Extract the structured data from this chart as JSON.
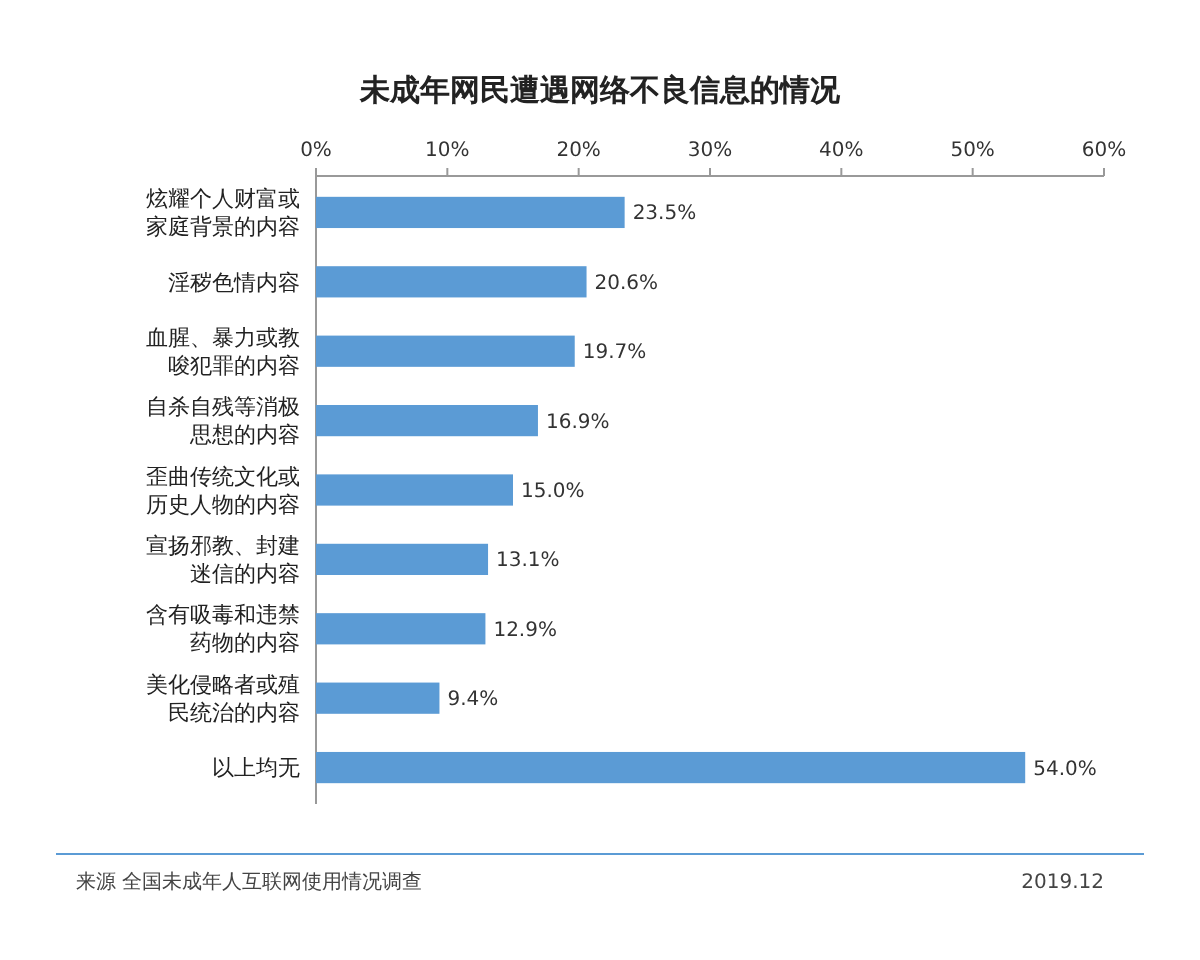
{
  "chart_data": {
    "type": "bar",
    "orientation": "horizontal",
    "title": "未成年网民遭遇网络不良信息的情况",
    "categories": [
      "炫耀个人财富或家庭背景的内容",
      "淫秽色情内容",
      "血腥、暴力或教唆犯罪的内容",
      "自杀自残等消极思想的内容",
      "歪曲传统文化或历史人物的内容",
      "宣扬邪教、封建迷信的内容",
      "含有吸毒和违禁药物的内容",
      "美化侵略者或殖民统治的内容",
      "以上均无"
    ],
    "values": [
      23.5,
      20.6,
      19.7,
      16.9,
      15.0,
      13.1,
      12.9,
      9.4,
      54.0
    ],
    "value_labels": [
      "23.5%",
      "20.6%",
      "19.7%",
      "16.9%",
      "15.0%",
      "13.1%",
      "12.9%",
      "9.4%",
      "54.0%"
    ],
    "color": "#5b9bd5",
    "xlim": [
      0,
      60
    ],
    "xticks": [
      {
        "value": 0,
        "label": "0%"
      },
      {
        "value": 10,
        "label": "10%"
      },
      {
        "value": 20,
        "label": "20%"
      },
      {
        "value": 30,
        "label": "30%"
      },
      {
        "value": 40,
        "label": "40%"
      },
      {
        "value": 50,
        "label": "50%"
      },
      {
        "value": 60,
        "label": "60%"
      }
    ],
    "annotations": [
      "来源 全国未成年人互联网使用情况调查",
      "2019.12"
    ]
  }
}
